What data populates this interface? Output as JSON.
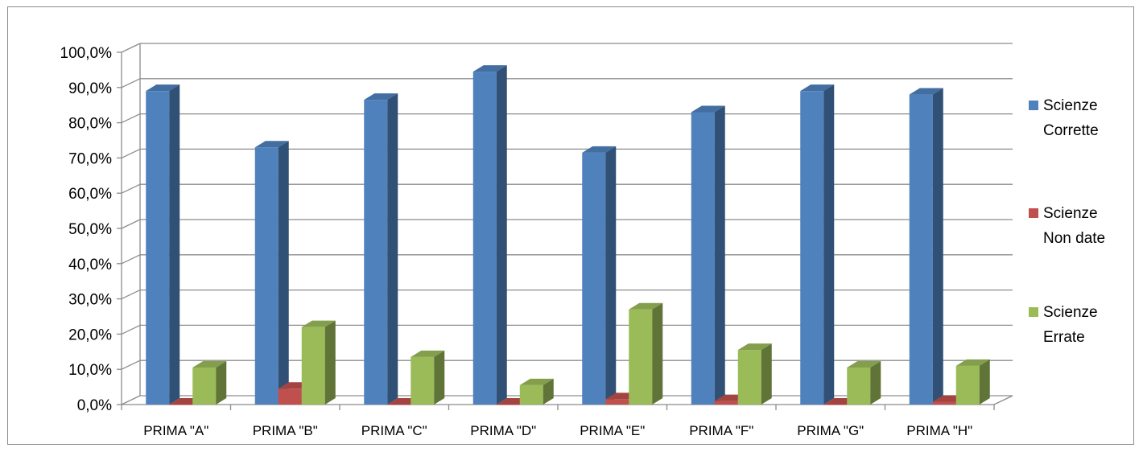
{
  "chart_data": {
    "type": "bar",
    "style": "3d-clustered-column",
    "categories": [
      "PRIMA  \"A\"",
      "PRIMA  \"B\"",
      "PRIMA  \"C\"",
      "PRIMA  \"D\"",
      "PRIMA  \"E\"",
      "PRIMA  \"F\"",
      "PRIMA  \"G\"",
      "PRIMA  \"H\""
    ],
    "series": [
      {
        "name": "Scienze Corrette",
        "name_lines": [
          "Scienze",
          "Corrette"
        ],
        "color": "#4F81BD",
        "values": [
          89.0,
          73.0,
          86.5,
          94.5,
          71.5,
          83.0,
          89.0,
          88.0
        ]
      },
      {
        "name": "Scienze Non date",
        "name_lines": [
          "Scienze",
          "Non date"
        ],
        "color": "#C0504D",
        "values": [
          0.0,
          4.5,
          0.0,
          0.0,
          1.5,
          1.0,
          0.0,
          0.8
        ]
      },
      {
        "name": "Scienze Errate",
        "name_lines": [
          "Scienze",
          "Errate"
        ],
        "color": "#9BBB59",
        "values": [
          10.5,
          22.0,
          13.5,
          5.5,
          27.0,
          15.5,
          10.5,
          11.0
        ]
      }
    ],
    "y_ticks": [
      "0,0%",
      "10,0%",
      "20,0%",
      "30,0%",
      "40,0%",
      "50,0%",
      "60,0%",
      "70,0%",
      "80,0%",
      "90,0%",
      "100,0%"
    ],
    "ylim": [
      0,
      100
    ],
    "grid": true,
    "legend_position": "right",
    "title": "",
    "xlabel": "",
    "ylabel": ""
  }
}
